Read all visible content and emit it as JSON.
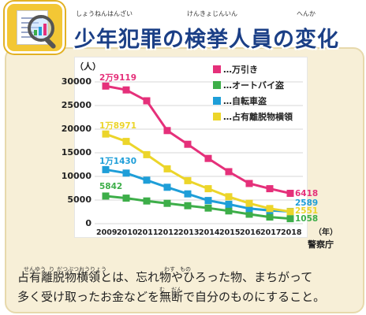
{
  "header": {
    "title": "少年犯罪の検挙人員の変化",
    "ruby": [
      "しょうねんはんざい",
      "けんきょじんいん",
      "へんか"
    ]
  },
  "chart_data": {
    "type": "line",
    "x": [
      2009,
      2010,
      2011,
      2012,
      2013,
      2014,
      2015,
      2016,
      2017,
      2018
    ],
    "ylim": [
      0,
      30000
    ],
    "yticks": [
      "30000",
      "25000",
      "20000",
      "15000",
      "10000",
      "5000",
      "0"
    ],
    "yticks_values": [
      30000,
      25000,
      20000,
      15000,
      10000,
      5000,
      0
    ],
    "xticks": [
      "2009",
      "2010",
      "2011",
      "2012",
      "2013",
      "2014",
      "2015",
      "2016",
      "2017",
      "2018"
    ],
    "ylabel": "（人）",
    "xlabel": "（年）",
    "source": "警察庁",
    "legend_position": "top-right",
    "grid": "horizontal",
    "series": [
      {
        "name": "…万引き",
        "color": "#e5307a",
        "values": [
          29119,
          28300,
          26000,
          19700,
          16800,
          13800,
          11000,
          8500,
          7400,
          6418
        ],
        "start_label": "2万9119",
        "end_label": "6418"
      },
      {
        "name": "…オートバイ盗",
        "color": "#3dae49",
        "values": [
          5842,
          5400,
          4800,
          4300,
          3800,
          3300,
          2700,
          2000,
          1400,
          1058
        ],
        "start_label": "5842",
        "end_label": "1058"
      },
      {
        "name": "…自転車盗",
        "color": "#1e9ed8",
        "values": [
          11430,
          10700,
          9200,
          7700,
          6300,
          4900,
          4100,
          3200,
          2800,
          2589
        ],
        "start_label": "1万1430",
        "end_label": "2589"
      },
      {
        "name": "…占有離脱物横領",
        "color": "#ecd52a",
        "values": [
          18971,
          17400,
          14600,
          11600,
          9100,
          7400,
          5700,
          4300,
          3200,
          2551
        ],
        "start_label": "1万8971",
        "end_label": "2551"
      }
    ]
  },
  "caption": {
    "line1": "占有離脱物横領とは、忘れ物やひろった物、まちがって",
    "line2": "多く受け取ったお金などを無断で自分のものにすること。",
    "ruby": [
      "せんゆう",
      "り",
      "だつぶつおうりょう",
      "わす",
      "もの",
      "む",
      "だん"
    ]
  },
  "icon": {
    "name": "document-magnifier-icon",
    "color": "#f3c735"
  }
}
